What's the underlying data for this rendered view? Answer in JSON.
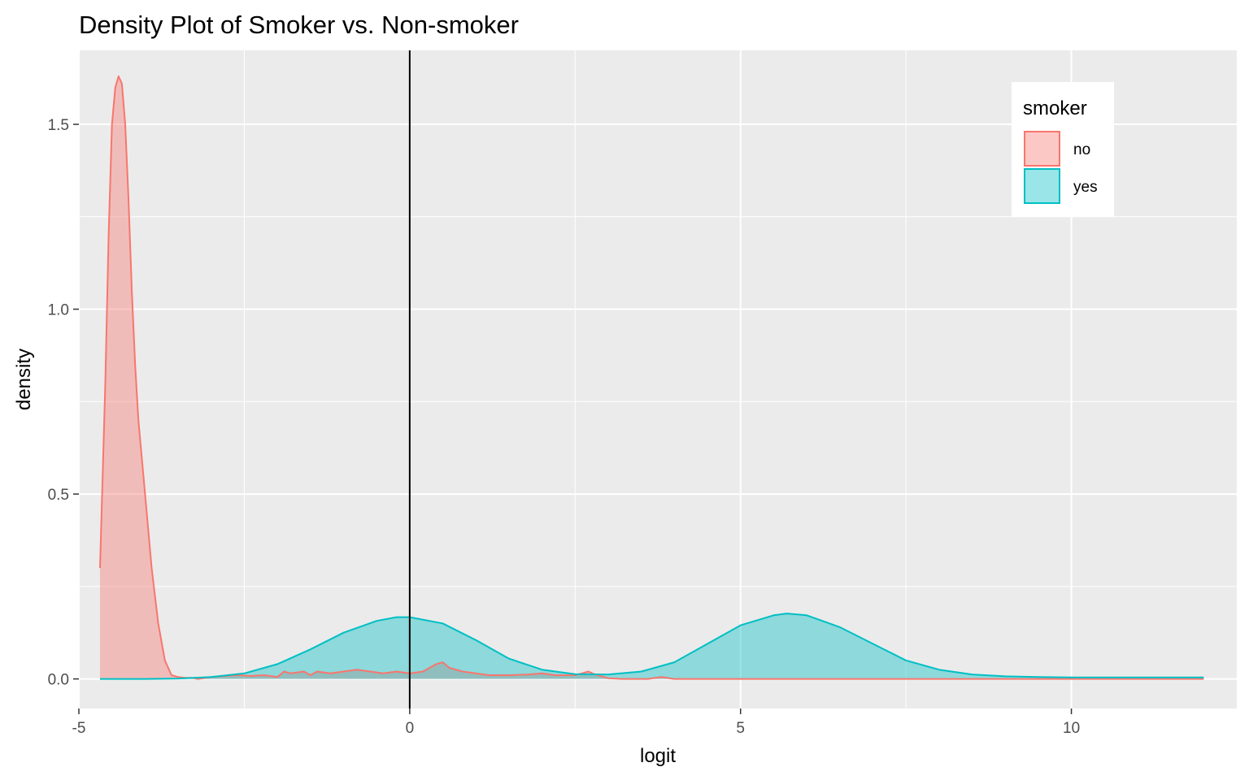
{
  "chart_data": {
    "type": "area",
    "title": "Density Plot of Smoker vs. Non-smoker",
    "xlabel": "logit",
    "ylabel": "density",
    "xlim": [
      -5.0,
      12.5
    ],
    "ylim": [
      -0.08,
      1.7
    ],
    "x_ticks": [
      -5,
      0,
      5,
      10
    ],
    "x_tick_labels": [
      "-5",
      "0",
      "5",
      "10"
    ],
    "y_ticks": [
      0.0,
      0.5,
      1.0,
      1.5
    ],
    "y_tick_labels": [
      "0.0",
      "0.5",
      "1.0",
      "1.5"
    ],
    "grid": true,
    "vline_x": 0,
    "legend": {
      "title": "smoker",
      "placement": "top-right",
      "entries": [
        "no",
        "yes"
      ]
    },
    "series": [
      {
        "name": "no",
        "color": "#F8766D",
        "fill": "rgba(248,118,109,0.4)",
        "x": [
          -4.68,
          -4.6,
          -4.55,
          -4.5,
          -4.45,
          -4.4,
          -4.35,
          -4.3,
          -4.25,
          -4.2,
          -4.15,
          -4.1,
          -4.05,
          -4.0,
          -3.9,
          -3.8,
          -3.7,
          -3.6,
          -3.5,
          -3.4,
          -3.3,
          -3.2,
          -3.0,
          -2.8,
          -2.6,
          -2.4,
          -2.2,
          -2.0,
          -1.9,
          -1.8,
          -1.6,
          -1.5,
          -1.4,
          -1.2,
          -1.0,
          -0.8,
          -0.6,
          -0.4,
          -0.2,
          0.0,
          0.2,
          0.4,
          0.5,
          0.6,
          0.8,
          1.0,
          1.2,
          1.5,
          1.8,
          2.0,
          2.2,
          2.5,
          2.6,
          2.7,
          2.8,
          3.0,
          3.2,
          3.5,
          3.6,
          3.8,
          4.0,
          6.0,
          8.0,
          10.0,
          12.0
        ],
        "y": [
          0.3,
          0.8,
          1.2,
          1.5,
          1.6,
          1.63,
          1.61,
          1.5,
          1.3,
          1.05,
          0.85,
          0.7,
          0.6,
          0.5,
          0.3,
          0.15,
          0.05,
          0.01,
          0.005,
          0.003,
          0.003,
          0.0,
          0.005,
          0.008,
          0.01,
          0.008,
          0.01,
          0.005,
          0.02,
          0.015,
          0.02,
          0.01,
          0.02,
          0.015,
          0.02,
          0.025,
          0.02,
          0.015,
          0.02,
          0.015,
          0.02,
          0.04,
          0.045,
          0.03,
          0.02,
          0.015,
          0.01,
          0.01,
          0.012,
          0.015,
          0.01,
          0.01,
          0.015,
          0.02,
          0.012,
          0.002,
          0.0,
          0.0,
          0.0,
          0.005,
          0.0,
          0.0,
          0.0,
          0.0,
          0.0
        ]
      },
      {
        "name": "yes",
        "color": "#00BFC4",
        "fill": "rgba(0,191,196,0.4)",
        "x": [
          -4.68,
          -4.0,
          -3.5,
          -3.0,
          -2.5,
          -2.0,
          -1.5,
          -1.0,
          -0.5,
          -0.2,
          0.0,
          0.5,
          1.0,
          1.5,
          2.0,
          2.5,
          3.0,
          3.5,
          4.0,
          4.5,
          5.0,
          5.5,
          5.7,
          6.0,
          6.5,
          7.0,
          7.5,
          8.0,
          8.5,
          9.0,
          9.5,
          10.0,
          11.0,
          12.0
        ],
        "y": [
          0.0,
          0.0,
          0.001,
          0.005,
          0.015,
          0.04,
          0.08,
          0.125,
          0.157,
          0.167,
          0.167,
          0.15,
          0.105,
          0.055,
          0.025,
          0.013,
          0.012,
          0.02,
          0.045,
          0.095,
          0.145,
          0.172,
          0.177,
          0.172,
          0.14,
          0.095,
          0.05,
          0.025,
          0.012,
          0.007,
          0.005,
          0.004,
          0.004,
          0.004
        ]
      }
    ]
  }
}
